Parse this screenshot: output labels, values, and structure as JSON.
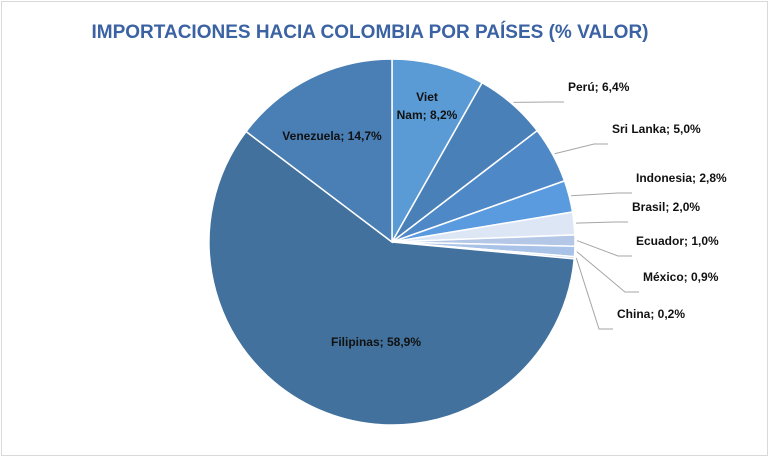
{
  "chart_data": {
    "type": "pie",
    "title": "IMPORTACIONES HACIA COLOMBIA POR PAÍSES (% VALOR)",
    "values": [
      8.2,
      6.4,
      5.0,
      2.8,
      2.0,
      1.0,
      0.9,
      0.2,
      58.9,
      14.7
    ],
    "value_labels": [
      "Viet Nam; 8,2%",
      "Perú; 6,4%",
      "Sri Lanka; 5,0%",
      "Indonesia; 2,8%",
      "Brasil; 2,0%",
      "Ecuador; 1,0%",
      "México; 0,9%",
      "China; 0,2%",
      "Filipinas; 58,9%",
      "Venezuela; 14,7%"
    ],
    "colors": [
      "#5b9bd5",
      "#4a80b8",
      "#4f88c6",
      "#5a9be0",
      "#dde6f5",
      "#b4c7e7",
      "#a9c2e8",
      "#c5d5f0",
      "#41719c",
      "#4a7fb5"
    ]
  }
}
